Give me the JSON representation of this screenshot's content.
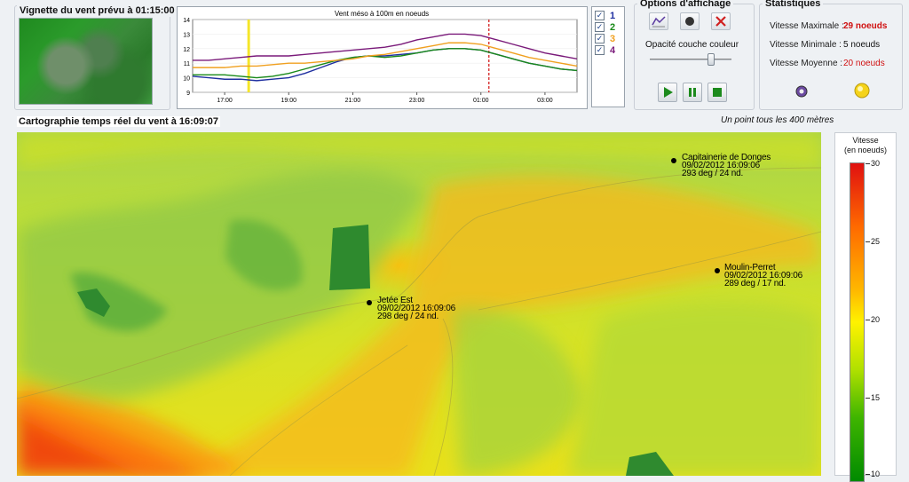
{
  "vignette": {
    "title": "Vignette du vent prévu à 01:15:00"
  },
  "chart_data": {
    "type": "line",
    "title": "Vent méso à 100m en noeuds",
    "x": [
      "16:00",
      "16:30",
      "17:00",
      "17:30",
      "18:00",
      "18:30",
      "19:00",
      "19:30",
      "20:00",
      "20:30",
      "21:00",
      "21:30",
      "22:00",
      "22:30",
      "23:00",
      "23:30",
      "00:00",
      "00:30",
      "01:00",
      "01:30",
      "02:00",
      "02:30",
      "03:00",
      "03:30",
      "04:00"
    ],
    "xtick_labels": [
      "17:00",
      "19:00",
      "21:00",
      "23:00",
      "01:00",
      "03:00"
    ],
    "ylim": [
      9,
      14
    ],
    "ytick_labels": [
      "9",
      "10",
      "11",
      "12",
      "13",
      "14"
    ],
    "current_time_marker": "17:45",
    "forecast_marker": "01:15",
    "series": [
      {
        "name": "1",
        "color": "#1f2fa0",
        "values": [
          10.1,
          10.0,
          9.9,
          9.9,
          9.8,
          9.9,
          10.0,
          10.3,
          10.7,
          11.1,
          11.4,
          11.5,
          11.5,
          11.6,
          11.7,
          11.9,
          12.0,
          12.0,
          11.9,
          11.6,
          11.3,
          11.0,
          10.8,
          10.6,
          10.5
        ]
      },
      {
        "name": "2",
        "color": "#1a8a1a",
        "values": [
          10.2,
          10.2,
          10.2,
          10.1,
          10.0,
          10.1,
          10.3,
          10.6,
          10.9,
          11.2,
          11.4,
          11.5,
          11.4,
          11.5,
          11.7,
          11.9,
          12.0,
          12.0,
          11.9,
          11.6,
          11.3,
          11.0,
          10.8,
          10.6,
          10.5
        ]
      },
      {
        "name": "3",
        "color": "#f0a020",
        "values": [
          10.7,
          10.7,
          10.7,
          10.8,
          10.8,
          10.9,
          11.0,
          11.0,
          11.1,
          11.2,
          11.3,
          11.5,
          11.6,
          11.8,
          12.0,
          12.2,
          12.4,
          12.4,
          12.3,
          12.0,
          11.7,
          11.4,
          11.2,
          11.0,
          10.8
        ]
      },
      {
        "name": "4",
        "color": "#7a1a7a",
        "values": [
          11.2,
          11.2,
          11.3,
          11.4,
          11.5,
          11.5,
          11.5,
          11.6,
          11.7,
          11.8,
          11.9,
          12.0,
          12.1,
          12.3,
          12.6,
          12.8,
          13.0,
          13.0,
          12.9,
          12.6,
          12.3,
          12.0,
          11.7,
          11.5,
          11.3
        ]
      }
    ]
  },
  "series_checks": [
    {
      "num": "1",
      "color": "#1f2fa0",
      "checked": "✓"
    },
    {
      "num": "2",
      "color": "#1a8a1a",
      "checked": "✓"
    },
    {
      "num": "3",
      "color": "#f0a020",
      "checked": "✓"
    },
    {
      "num": "4",
      "color": "#7a1a7a",
      "checked": "✓"
    }
  ],
  "options": {
    "title": "Options d'affichage",
    "opacity_label": "Opacité couche couleur",
    "opacity_value": 0.75
  },
  "stats": {
    "title": "Statistiques",
    "max_label": "Vitesse Maximale :",
    "max_value": "29 noeuds",
    "min_label": "Vitesse Minimale :",
    "min_value": "5 noeuds",
    "mean_label": "Vitesse Moyenne :",
    "mean_value": "20 noeuds"
  },
  "map": {
    "title": "Cartographie temps réel du vent à 16:09:07",
    "resolution_note": "Un point tous les 400 mètres",
    "stations": [
      {
        "name": "Capitainerie de Donges",
        "date": "09/02/2012 16:09:06",
        "reading": "293 deg / 24 nd."
      },
      {
        "name": "Jetée Est",
        "date": "09/02/2012 16:09:06",
        "reading": "298 deg / 24 nd."
      },
      {
        "name": "Moulin-Perret",
        "date": "09/02/2012 16:09:06",
        "reading": "289 deg / 17 nd."
      }
    ]
  },
  "legend": {
    "title_line1": "Vitesse",
    "title_line2": "(en noeuds)",
    "ticks": [
      "30",
      "25",
      "20",
      "15",
      "10"
    ]
  },
  "colors": {
    "max_value": "#d01010",
    "mean_value": "#d01010"
  }
}
